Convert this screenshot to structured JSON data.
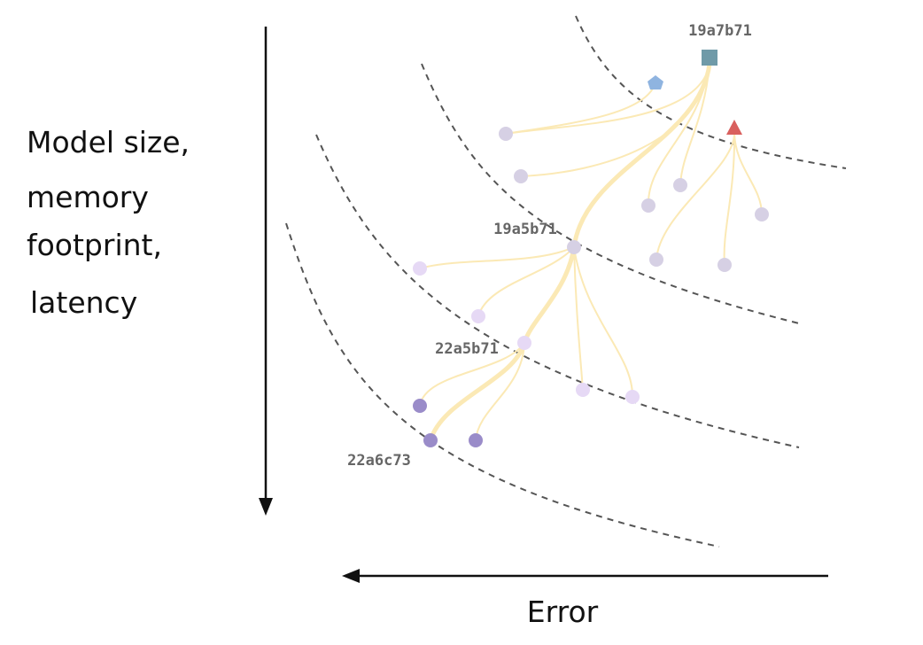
{
  "axes": {
    "y_label": [
      "Model size,",
      "memory",
      "footprint,",
      "latency"
    ],
    "x_label": "Error"
  },
  "nodes": [
    {
      "label": "19a7b71"
    },
    {
      "label": "19a5b71"
    },
    {
      "label": "22a5b71"
    },
    {
      "label": "22a6c73"
    }
  ]
}
